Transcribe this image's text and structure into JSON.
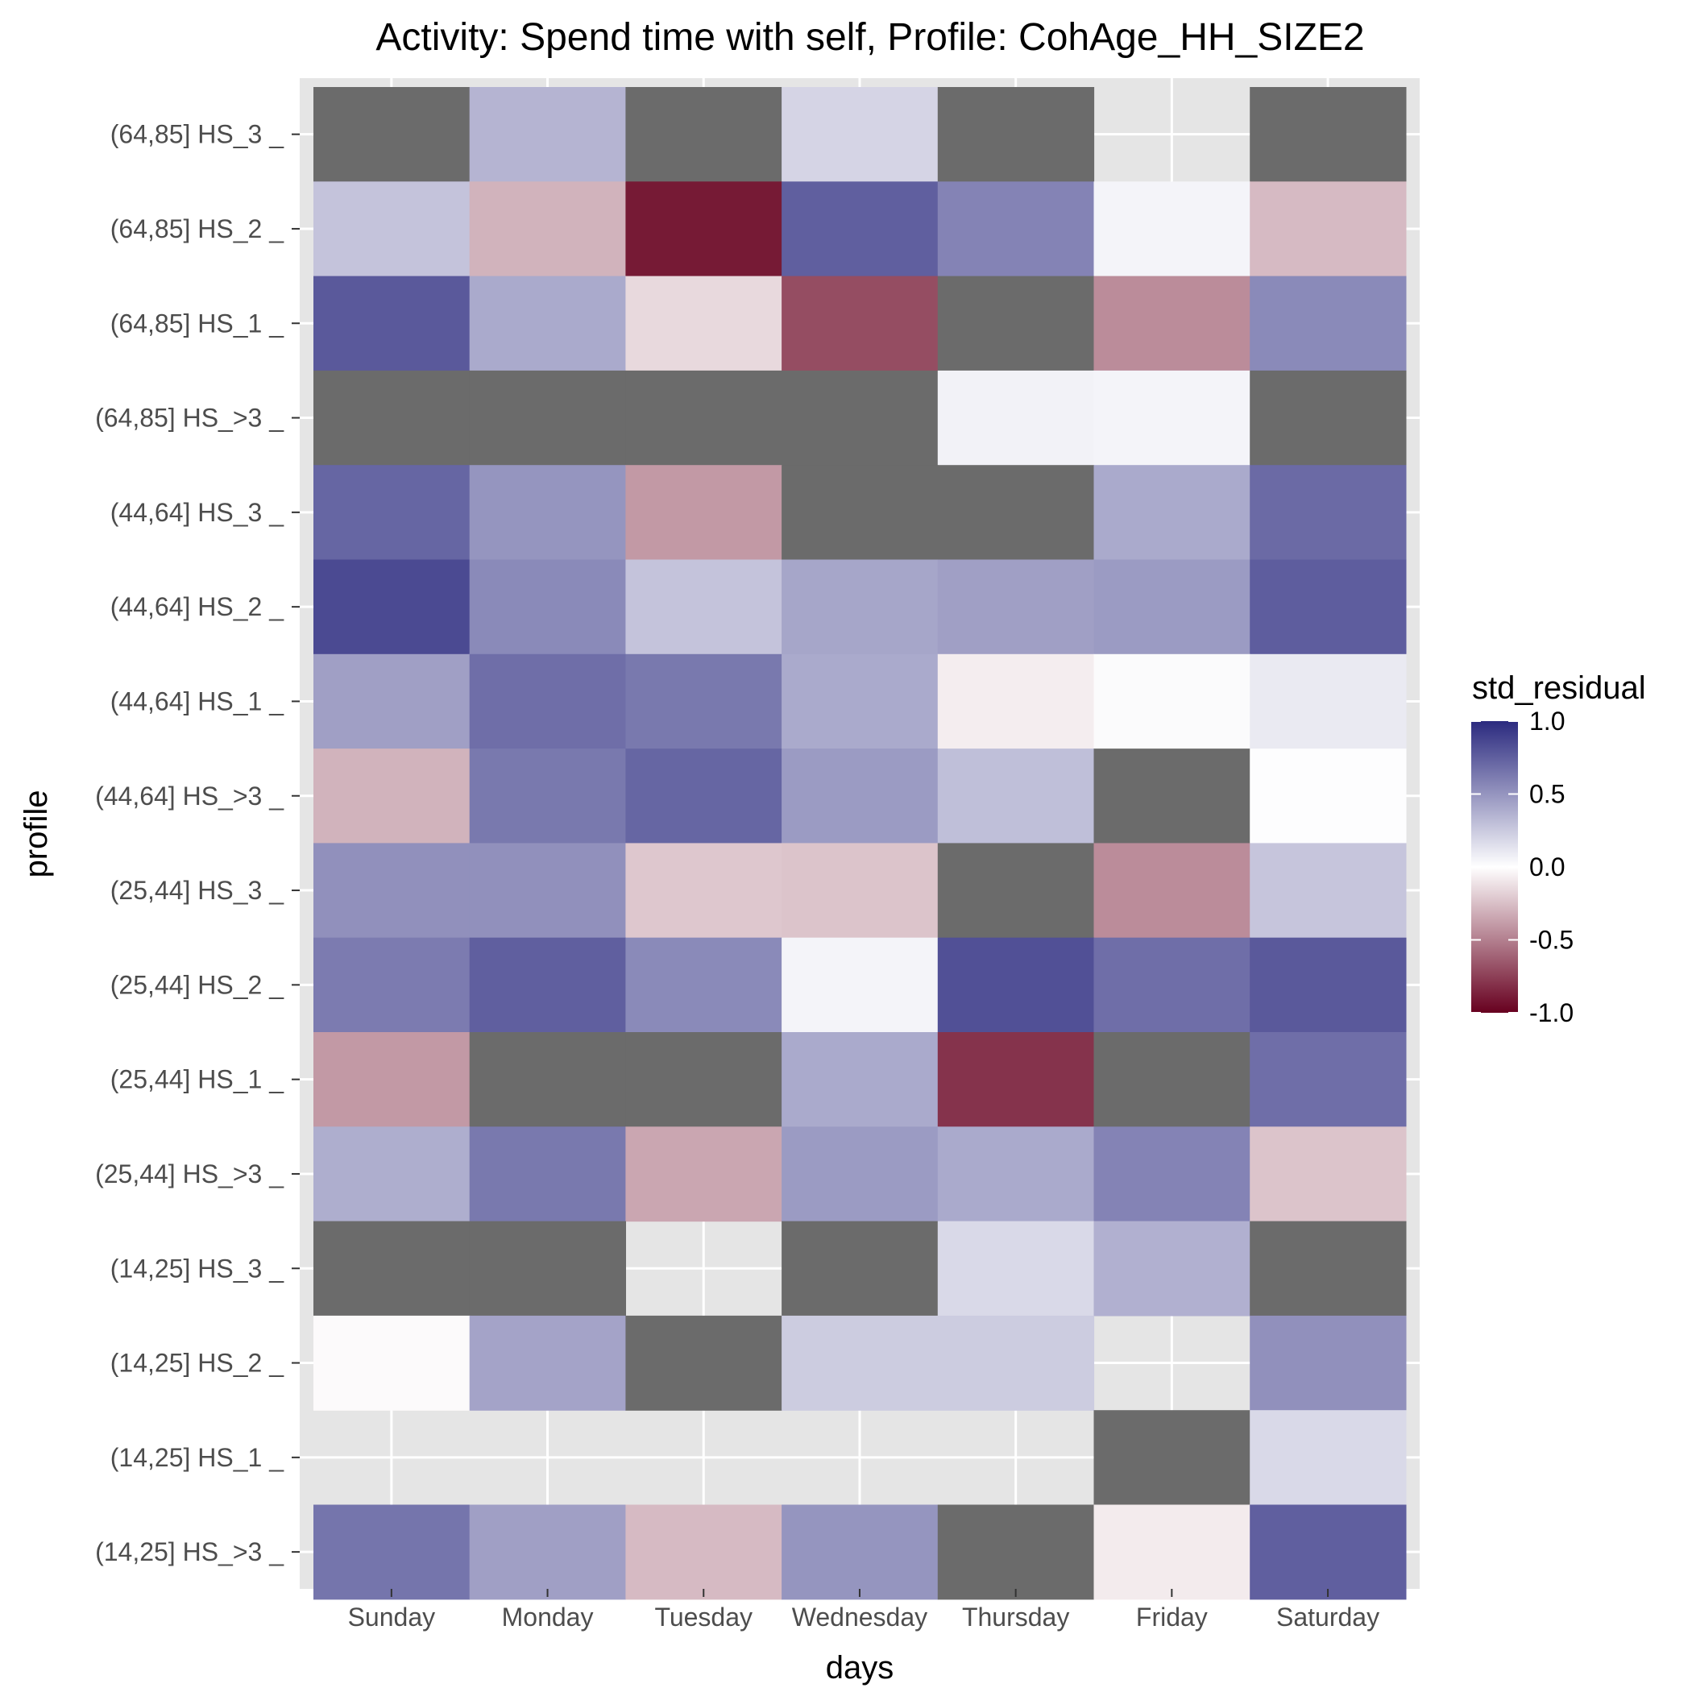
{
  "chart_data": {
    "type": "heatmap",
    "title": "Activity: Spend time with self, Profile: CohAge_HH_SIZE2",
    "xlabel": "days",
    "ylabel": "profile",
    "x_categories": [
      "Sunday",
      "Monday",
      "Tuesday",
      "Wednesday",
      "Thursday",
      "Friday",
      "Saturday"
    ],
    "y_categories": [
      "(64,85] HS_3 _",
      "(64,85] HS_2 _",
      "(64,85] HS_1 _",
      "(64,85] HS_>3 _",
      "(44,64] HS_3 _",
      "(44,64] HS_2 _",
      "(44,64] HS_1 _",
      "(44,64] HS_>3 _",
      "(25,44] HS_3 _",
      "(25,44] HS_2 _",
      "(25,44] HS_1 _",
      "(25,44] HS_>3 _",
      "(14,25] HS_3 _",
      "(14,25] HS_2 _",
      "(14,25] HS_1 _",
      "(14,25] HS_>3 _"
    ],
    "values": [
      [
        "NA",
        0.35,
        "NA",
        0.2,
        "NA",
        null,
        "NA"
      ],
      [
        0.28,
        -0.3,
        -0.9,
        0.75,
        0.58,
        0.05,
        -0.27
      ],
      [
        0.78,
        0.4,
        -0.15,
        -0.7,
        "NA",
        -0.45,
        0.55
      ],
      [
        "NA",
        "NA",
        "NA",
        "NA",
        0.06,
        0.05,
        "NA"
      ],
      [
        0.72,
        0.5,
        -0.4,
        "NA",
        "NA",
        0.4,
        0.7
      ],
      [
        0.85,
        0.55,
        0.28,
        0.42,
        0.45,
        0.47,
        0.76
      ],
      [
        0.45,
        0.68,
        0.63,
        0.4,
        -0.07,
        0.02,
        0.1
      ],
      [
        -0.3,
        0.63,
        0.72,
        0.47,
        0.3,
        "NA",
        0.01
      ],
      [
        0.52,
        0.52,
        -0.22,
        -0.23,
        "NA",
        -0.45,
        0.27
      ],
      [
        0.62,
        0.75,
        0.55,
        0.05,
        0.82,
        0.68,
        0.78
      ],
      [
        -0.4,
        "NA",
        "NA",
        0.4,
        -0.8,
        "NA",
        0.68
      ],
      [
        0.38,
        0.63,
        -0.35,
        0.47,
        0.4,
        0.58,
        -0.23
      ],
      [
        "NA",
        "NA",
        null,
        "NA",
        0.18,
        0.37,
        "NA"
      ],
      [
        -0.02,
        0.43,
        "NA",
        0.24,
        0.24,
        null,
        0.52
      ],
      [
        null,
        null,
        null,
        null,
        null,
        "NA",
        0.18
      ],
      [
        0.65,
        0.45,
        -0.27,
        0.5,
        "NA",
        -0.08,
        0.75
      ]
    ],
    "colorbar": {
      "title": "std_residual",
      "ticks": [
        "1.0",
        "0.5",
        "0.0",
        "-0.5",
        "-1.0"
      ],
      "tick_values": [
        1.0,
        0.5,
        0.0,
        -0.5,
        -1.0
      ],
      "range": [
        -1,
        1
      ],
      "low_color": "#67001f",
      "mid_color": "#ffffff",
      "high_color": "#2b2a7f"
    },
    "na_color": "#6b6b6b",
    "panel_background": "#e5e5e5",
    "grid": true,
    "legend_position": "right"
  }
}
